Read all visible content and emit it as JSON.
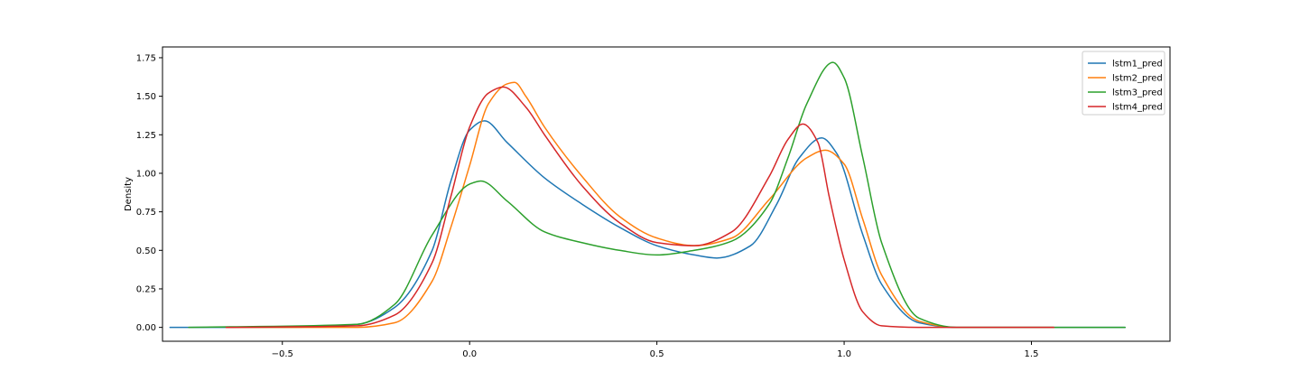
{
  "chart_data": {
    "type": "line",
    "title": "",
    "xlabel": "",
    "ylabel": "Density",
    "xlim": [
      -0.82,
      1.87
    ],
    "ylim": [
      -0.09,
      1.82
    ],
    "xticks": [
      -0.5,
      0.0,
      0.5,
      1.0,
      1.5
    ],
    "xtick_labels": [
      "−0.5",
      "0.0",
      "0.5",
      "1.0",
      "1.5"
    ],
    "yticks": [
      0.0,
      0.25,
      0.5,
      0.75,
      1.0,
      1.25,
      1.5,
      1.75
    ],
    "ytick_labels": [
      "0.00",
      "0.25",
      "0.50",
      "0.75",
      "1.00",
      "1.25",
      "1.50",
      "1.75"
    ],
    "grid": false,
    "legend": {
      "position": "top-right"
    },
    "series": [
      {
        "name": "lstm1_pred",
        "color": "#1f77b4",
        "x": [
          -0.8,
          -0.5,
          -0.3,
          -0.2,
          -0.1,
          -0.05,
          0.0,
          0.04,
          0.1,
          0.2,
          0.3,
          0.4,
          0.5,
          0.6,
          0.66,
          0.75,
          0.82,
          0.88,
          0.94,
          0.98,
          1.05,
          1.1,
          1.2,
          1.3,
          1.5,
          1.75
        ],
        "y": [
          0.0,
          0.0,
          0.02,
          0.13,
          0.5,
          0.95,
          1.28,
          1.34,
          1.2,
          0.97,
          0.8,
          0.65,
          0.53,
          0.47,
          0.45,
          0.53,
          0.8,
          1.1,
          1.23,
          1.13,
          0.6,
          0.28,
          0.03,
          0.0,
          0.0,
          0.0
        ]
      },
      {
        "name": "lstm2_pred",
        "color": "#ff7f0e",
        "x": [
          -0.65,
          -0.3,
          -0.2,
          -0.1,
          -0.05,
          0.0,
          0.05,
          0.1,
          0.12,
          0.15,
          0.2,
          0.3,
          0.4,
          0.5,
          0.6,
          0.7,
          0.8,
          0.9,
          0.95,
          1.0,
          1.05,
          1.1,
          1.2,
          1.3,
          1.56
        ],
        "y": [
          0.0,
          0.0,
          0.03,
          0.3,
          0.65,
          1.05,
          1.45,
          1.58,
          1.59,
          1.5,
          1.3,
          0.98,
          0.72,
          0.58,
          0.53,
          0.58,
          0.83,
          1.1,
          1.15,
          1.06,
          0.7,
          0.34,
          0.04,
          0.0,
          0.0
        ]
      },
      {
        "name": "lstm3_pred",
        "color": "#2ca02c",
        "x": [
          -0.75,
          -0.3,
          -0.2,
          -0.1,
          0.0,
          0.03,
          0.1,
          0.2,
          0.3,
          0.4,
          0.5,
          0.6,
          0.7,
          0.8,
          0.85,
          0.9,
          0.97,
          1.0,
          1.05,
          1.1,
          1.2,
          1.3,
          1.5,
          1.75
        ],
        "y": [
          0.0,
          0.02,
          0.15,
          0.6,
          0.93,
          0.95,
          0.82,
          0.62,
          0.55,
          0.5,
          0.47,
          0.5,
          0.56,
          0.8,
          1.1,
          1.45,
          1.72,
          1.62,
          1.1,
          0.55,
          0.06,
          0.0,
          0.0,
          0.0
        ]
      },
      {
        "name": "lstm4_pred",
        "color": "#d62728",
        "x": [
          -0.65,
          -0.3,
          -0.2,
          -0.1,
          -0.05,
          0.0,
          0.05,
          0.09,
          0.15,
          0.2,
          0.3,
          0.4,
          0.5,
          0.6,
          0.7,
          0.8,
          0.85,
          0.89,
          0.93,
          0.96,
          1.0,
          1.05,
          1.1,
          1.2,
          1.56
        ],
        "y": [
          0.0,
          0.01,
          0.08,
          0.42,
          0.85,
          1.3,
          1.52,
          1.56,
          1.43,
          1.25,
          0.92,
          0.68,
          0.55,
          0.53,
          0.62,
          0.98,
          1.22,
          1.32,
          1.2,
          0.85,
          0.44,
          0.1,
          0.01,
          0.0,
          0.0
        ]
      }
    ]
  }
}
